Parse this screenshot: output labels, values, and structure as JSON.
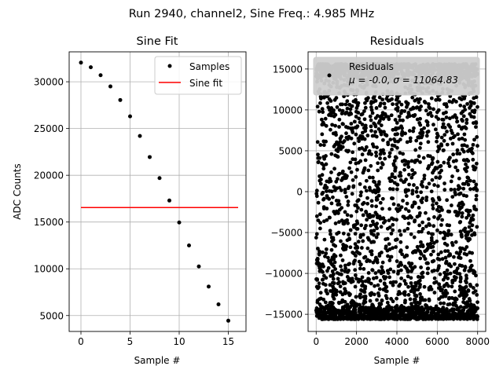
{
  "suptitle": "Run 2940, channel2, Sine Freq.: 4.985 MHz",
  "chart_data": [
    {
      "type": "scatter",
      "title": "Sine Fit",
      "xlabel": "Sample #",
      "ylabel": "ADC Counts",
      "xlim": [
        -1.2,
        16.8
      ],
      "ylim": [
        3300,
        33200
      ],
      "xticks": [
        0,
        5,
        10,
        15
      ],
      "yticks": [
        5000,
        10000,
        15000,
        20000,
        25000,
        30000
      ],
      "grid": true,
      "legend_position": "top-right",
      "series": [
        {
          "name": "Samples",
          "kind": "scatter",
          "color": "#000000",
          "x": [
            0,
            1,
            2,
            3,
            4,
            5,
            6,
            7,
            8,
            9,
            10,
            11,
            12,
            13,
            14,
            15
          ],
          "y": [
            32050,
            31550,
            30700,
            29500,
            28050,
            26300,
            24200,
            21950,
            19700,
            17300,
            14950,
            12500,
            10250,
            8100,
            6200,
            4450
          ]
        },
        {
          "name": "Sine fit",
          "kind": "line",
          "color": "#ff0000",
          "x": [
            0,
            16
          ],
          "y": [
            16550,
            16550
          ]
        }
      ]
    },
    {
      "type": "scatter",
      "title": "Residuals",
      "xlabel": "Sample #",
      "xlim": [
        -400,
        8400
      ],
      "ylim": [
        -17100,
        17100
      ],
      "xticks": [
        0,
        2000,
        4000,
        6000,
        8000
      ],
      "yticks": [
        -15000,
        -10000,
        -5000,
        0,
        5000,
        10000,
        15000
      ],
      "grid": true,
      "legend_position": "top-left",
      "series": [
        {
          "name": "Residuals",
          "label_stats": "μ = -0.0, σ = 11064.83",
          "kind": "scatter",
          "color": "#000000",
          "n_points": 8000,
          "x_range": [
            0,
            8000
          ],
          "y_range": [
            -15600,
            15600
          ]
        }
      ]
    }
  ]
}
